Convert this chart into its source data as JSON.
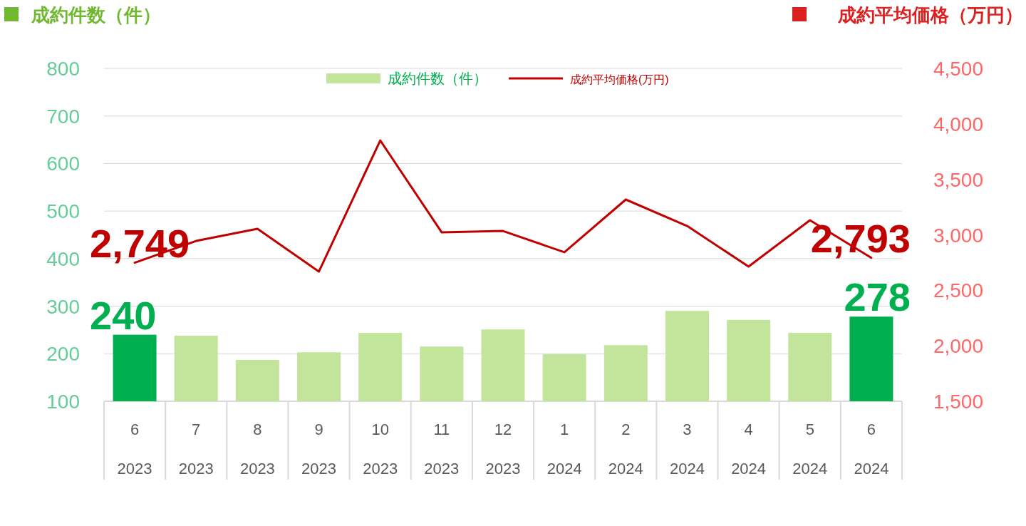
{
  "chart_data": {
    "type": "bar",
    "ylabel": "成約件数（件）",
    "y2label": "成約平均価格（万円）",
    "categories": [
      "6\n2023",
      "7\n2023",
      "8\n2023",
      "9\n2023",
      "10\n2023",
      "11\n2023",
      "12\n2023",
      "1\n2024",
      "2\n2024",
      "3\n2024",
      "4\n2024",
      "5\n2024",
      "6\n2024"
    ],
    "series": [
      {
        "name": "成約件数（件）",
        "color": "#c3e49b",
        "colors": [
          "#00b050",
          "#c3e49b",
          "#c3e49b",
          "#c3e49b",
          "#c3e49b",
          "#c3e49b",
          "#c3e49b",
          "#c3e49b",
          "#c3e49b",
          "#c3e49b",
          "#c3e49b",
          "#c3e49b",
          "#00b050"
        ],
        "values": [
          240,
          238,
          187,
          203,
          244,
          215,
          251,
          199,
          218,
          290,
          271,
          244,
          278
        ],
        "value_labels": [
          "240",
          null,
          null,
          null,
          null,
          null,
          null,
          null,
          null,
          null,
          null,
          null,
          "278"
        ]
      },
      {
        "name": "成約平均価格(万円)",
        "type": "line",
        "axis": "y2",
        "color": "#c00000",
        "values": [
          2749,
          2945,
          3055,
          2669,
          3851,
          3023,
          3035,
          2843,
          3318,
          3080,
          2714,
          3132,
          2793
        ],
        "value_labels": [
          "2,749",
          null,
          null,
          null,
          null,
          null,
          null,
          null,
          null,
          null,
          null,
          null,
          "2,793"
        ]
      }
    ],
    "ylim": [
      100,
      800
    ],
    "yticks": [
      100,
      200,
      300,
      400,
      500,
      600,
      700,
      800
    ],
    "y2lim": [
      1500,
      4500
    ],
    "y2ticks": [
      {
        "value": 1500,
        "label": "1,500"
      },
      {
        "value": 2000,
        "label": "2,000"
      },
      {
        "value": 2500,
        "label": "2,500"
      },
      {
        "value": 3000,
        "label": "3,000"
      },
      {
        "value": 3500,
        "label": "3,500"
      },
      {
        "value": 4000,
        "label": "4,000"
      },
      {
        "value": 4500,
        "label": "4,500"
      }
    ],
    "grid": "y",
    "legend": "top",
    "marker": "none"
  }
}
